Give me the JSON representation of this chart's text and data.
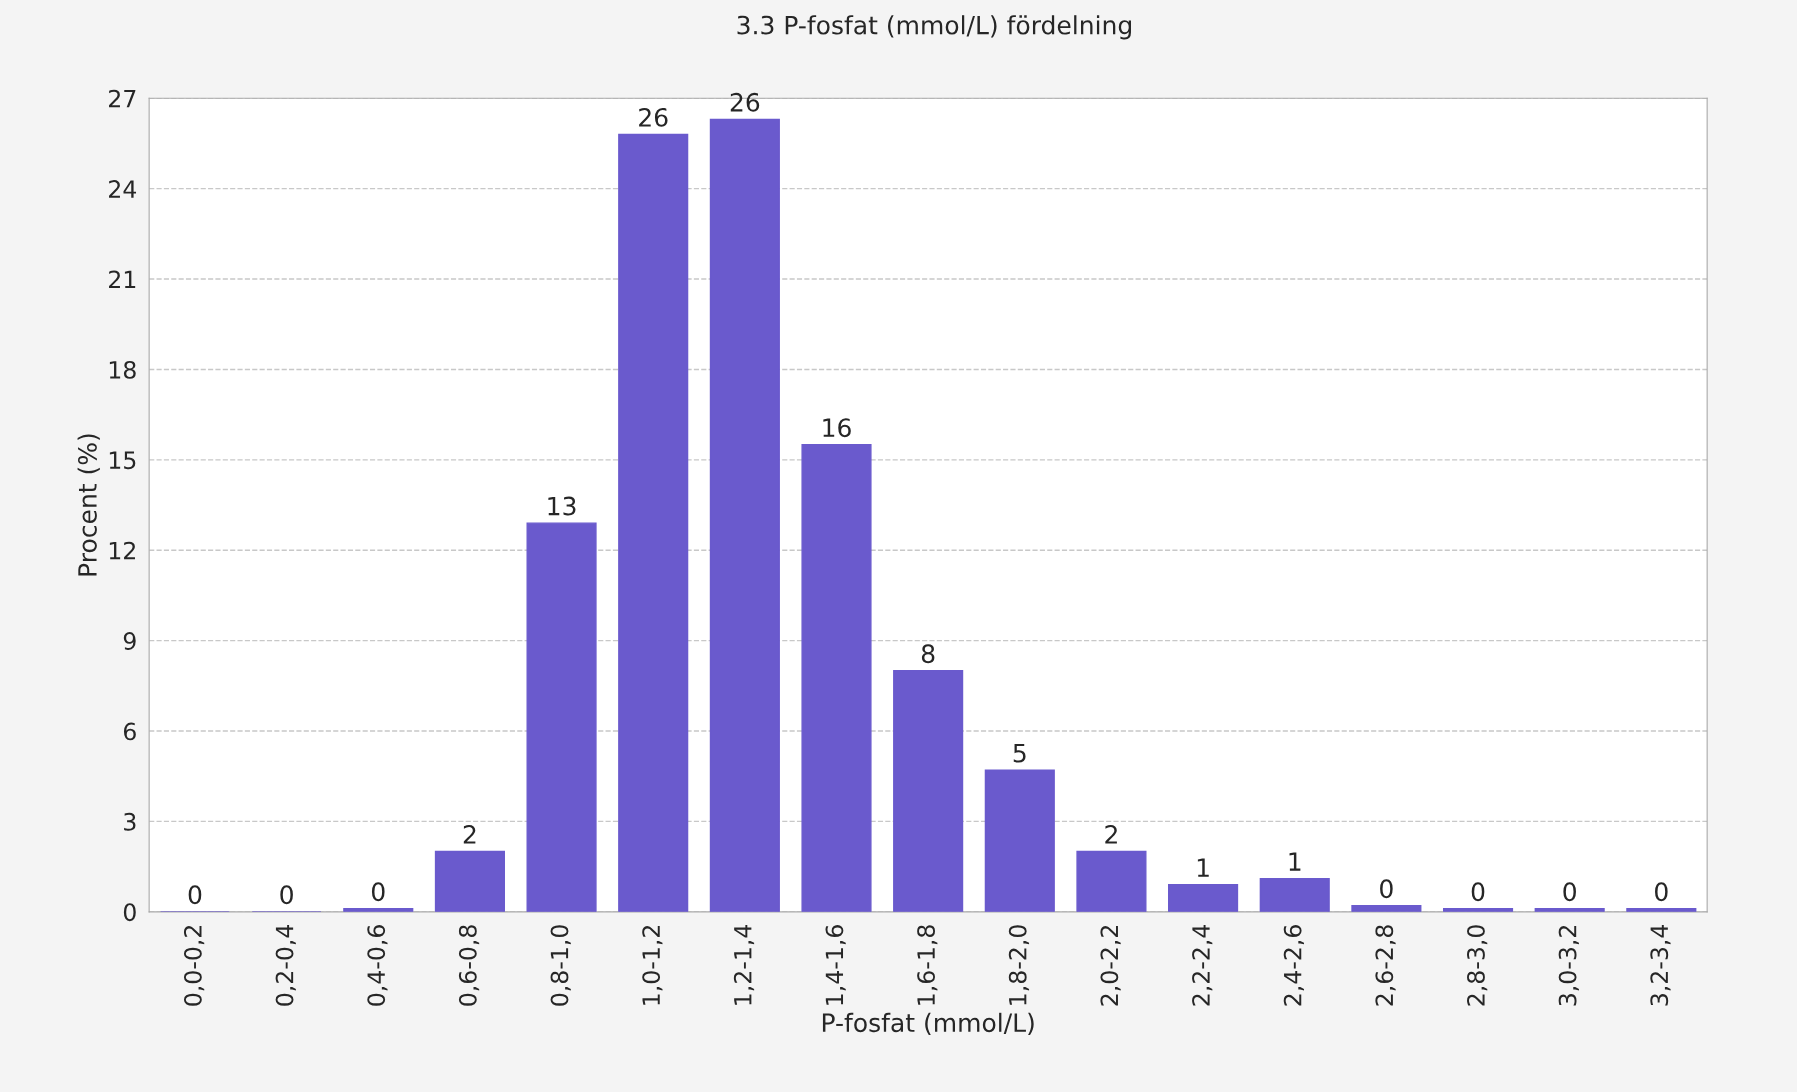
{
  "chart_data": {
    "type": "bar",
    "title": "3.3 P-fosfat (mmol/L) fördelning",
    "xlabel": "P-fosfat (mmol/L)",
    "ylabel": "Procent (%)",
    "categories": [
      "0,0-0,2",
      "0,2-0,4",
      "0,4-0,6",
      "0,6-0,8",
      "0,8-1,0",
      "1,0-1,2",
      "1,2-1,4",
      "1,4-1,6",
      "1,6-1,8",
      "1,8-2,0",
      "2,0-2,2",
      "2,2-2,4",
      "2,4-2,6",
      "2,6-2,8",
      "2,8-3,0",
      "3,0-3,2",
      "3,2-3,4"
    ],
    "values": [
      0,
      0,
      0.1,
      2.0,
      12.9,
      25.8,
      26.3,
      15.5,
      8.0,
      4.7,
      2.0,
      0.9,
      1.1,
      0.2,
      0.1,
      0.1,
      0.1
    ],
    "value_labels": [
      "0",
      "0",
      "0",
      "2",
      "13",
      "26",
      "26",
      "16",
      "8",
      "5",
      "2",
      "1",
      "1",
      "0",
      "0",
      "0",
      "0"
    ],
    "color": "#6a5acd",
    "ylim": [
      0,
      27
    ],
    "yticks": [
      0,
      3,
      6,
      9,
      12,
      15,
      18,
      21,
      24,
      27
    ],
    "grid": "y",
    "legend": false
  }
}
